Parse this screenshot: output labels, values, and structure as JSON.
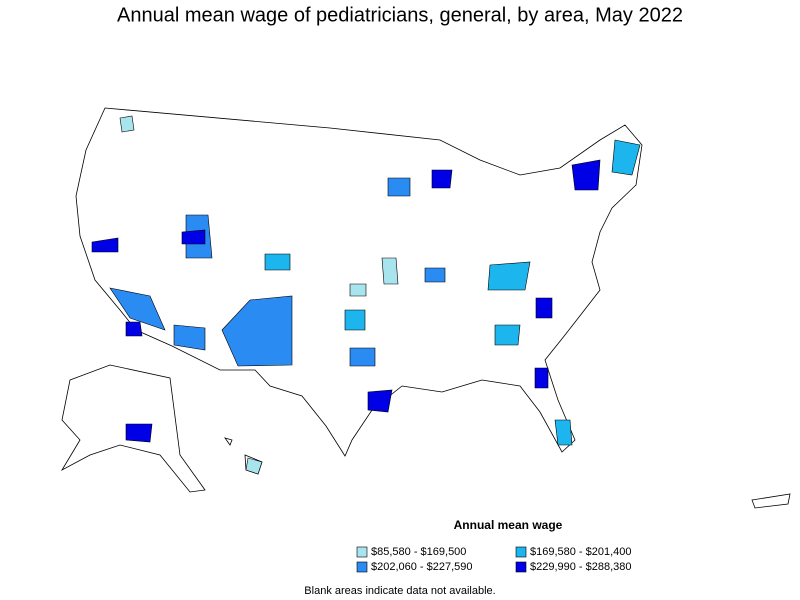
{
  "title": "Annual mean wage of pediatricians, general, by area, May 2022",
  "legend": {
    "title": "Annual mean wage",
    "items": [
      {
        "label": "$85,580 - $169,500",
        "color": "#a8e4ee"
      },
      {
        "label": "$169,580 - $201,400",
        "color": "#1cb5ee"
      },
      {
        "label": "$202,060 - $227,590",
        "color": "#2a8cf2"
      },
      {
        "label": "$229,990 - $288,380",
        "color": "#0000e6"
      }
    ]
  },
  "note": "Blank areas indicate data not available."
}
